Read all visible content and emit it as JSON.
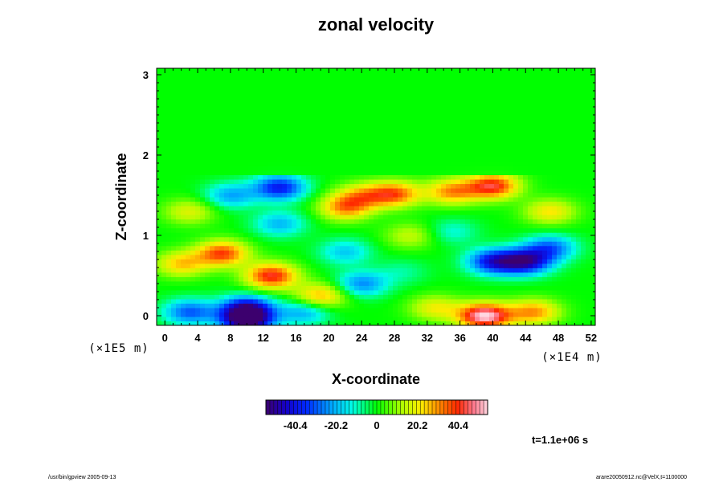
{
  "chart_data": {
    "type": "heatmap",
    "title": "zonal velocity",
    "xlabel": "X-coordinate",
    "ylabel": "Z-coordinate",
    "x_unit": "(×1E4 m)",
    "y_unit": "(×1E5 m)",
    "x_ticks": [
      "0",
      "4",
      "8",
      "12",
      "16",
      "20",
      "24",
      "28",
      "32",
      "36",
      "40",
      "44",
      "48",
      "52"
    ],
    "y_ticks": [
      "0",
      "1",
      "2",
      "3"
    ],
    "xlim": [
      -1,
      52.5
    ],
    "ylim": [
      -0.12,
      3.08
    ],
    "colorbar_ticks": [
      "-40.4",
      "-20.2",
      "0",
      "20.2",
      "40.4"
    ],
    "colorbar_range": [
      -55,
      55
    ],
    "time_label": "t=1.1e+06 s",
    "features": [
      {
        "x": 10,
        "z": 0.1,
        "value": -40
      },
      {
        "x": 10,
        "z": -0.05,
        "value": -55
      },
      {
        "x": 3,
        "z": 0.05,
        "value": -30
      },
      {
        "x": 17,
        "z": 0.05,
        "value": -22
      },
      {
        "x": 7,
        "z": 0.78,
        "value": 38
      },
      {
        "x": 2,
        "z": 0.65,
        "value": 25
      },
      {
        "x": 13,
        "z": 0.5,
        "value": 42
      },
      {
        "x": 19,
        "z": 0.25,
        "value": 28
      },
      {
        "x": 39,
        "z": 0.0,
        "value": 55
      },
      {
        "x": 45,
        "z": 0.05,
        "value": 30
      },
      {
        "x": 33,
        "z": 0.1,
        "value": 20
      },
      {
        "x": 44,
        "z": 0.68,
        "value": -45
      },
      {
        "x": 40,
        "z": 0.68,
        "value": -38
      },
      {
        "x": 47,
        "z": 0.85,
        "value": -28
      },
      {
        "x": 24,
        "z": 0.4,
        "value": -25
      },
      {
        "x": 22,
        "z": 0.8,
        "value": -18
      },
      {
        "x": 14,
        "z": 1.6,
        "value": -38
      },
      {
        "x": 8,
        "z": 1.5,
        "value": -22
      },
      {
        "x": 14,
        "z": 1.15,
        "value": -20
      },
      {
        "x": 40,
        "z": 1.62,
        "value": 42
      },
      {
        "x": 35,
        "z": 1.55,
        "value": 30
      },
      {
        "x": 28,
        "z": 1.52,
        "value": 35
      },
      {
        "x": 22,
        "z": 1.35,
        "value": 30
      },
      {
        "x": 24,
        "z": 1.5,
        "value": 22
      },
      {
        "x": 3,
        "z": 1.3,
        "value": 18
      },
      {
        "x": 30,
        "z": 1.0,
        "value": 15
      },
      {
        "x": 47,
        "z": 1.3,
        "value": 22
      },
      {
        "x": 35,
        "z": 1.05,
        "value": -12
      },
      {
        "x": 29,
        "z": 0.55,
        "value": -8
      }
    ]
  },
  "footer_left": "/usr/bin/gpview 2005-09-13",
  "footer_right": "arare20050912.nc@VelX,t=1100000"
}
